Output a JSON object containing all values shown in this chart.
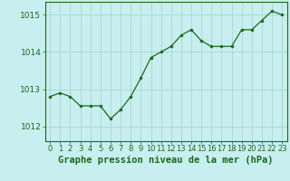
{
  "x": [
    0,
    1,
    2,
    3,
    4,
    5,
    6,
    7,
    8,
    9,
    10,
    11,
    12,
    13,
    14,
    15,
    16,
    17,
    18,
    19,
    20,
    21,
    22,
    23
  ],
  "y": [
    1012.8,
    1012.9,
    1012.8,
    1012.55,
    1012.55,
    1012.55,
    1012.2,
    1012.45,
    1012.8,
    1013.3,
    1013.85,
    1014.0,
    1014.15,
    1014.45,
    1014.6,
    1014.3,
    1014.15,
    1014.15,
    1014.15,
    1014.6,
    1014.6,
    1014.85,
    1015.1,
    1015.0
  ],
  "line_color": "#1a6b1a",
  "marker": "o",
  "marker_size": 2.2,
  "bg_color": "#c8eef0",
  "grid_color": "#a0d4c8",
  "xlabel": "Graphe pression niveau de la mer (hPa)",
  "xlabel_fontsize": 7.5,
  "ylabel_ticks": [
    1012,
    1013,
    1014,
    1015
  ],
  "ylim": [
    1011.6,
    1015.35
  ],
  "xlim": [
    -0.5,
    23.5
  ],
  "tick_fontsize": 6.5,
  "tick_color": "#1a6b1a",
  "label_color": "#1a6b1a",
  "spine_color": "#1a6b1a"
}
